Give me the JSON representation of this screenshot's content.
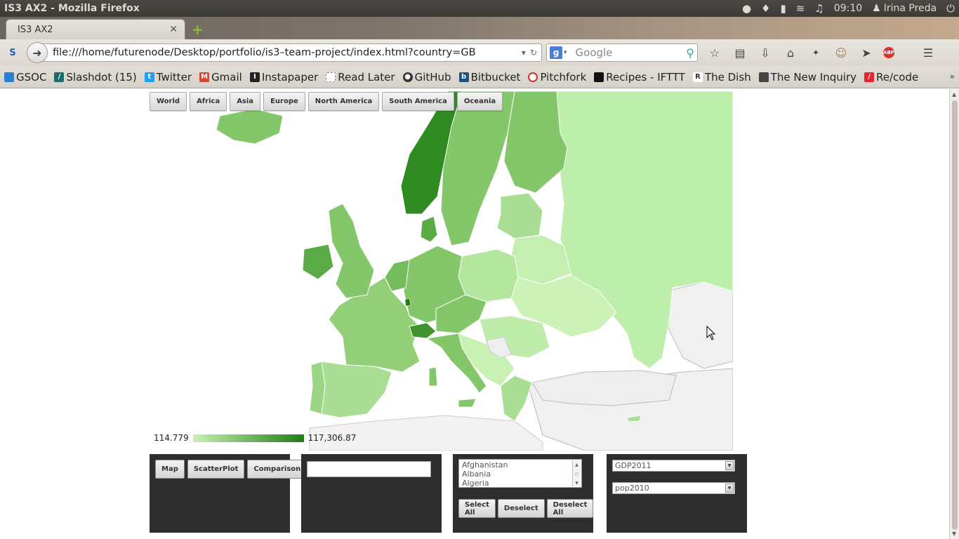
{
  "os": {
    "window_title": "IS3 AX2 - Mozilla Firefox",
    "time": "09:10",
    "user": "Irina Preda"
  },
  "tabs": [
    {
      "label": "IS3 AX2"
    }
  ],
  "navbar": {
    "url": "file:///home/futurenode/Desktop/portfolio/is3–team-project/index.html?country=GB",
    "search_placeholder": "Google"
  },
  "bookmarks": [
    {
      "label": "GSOC",
      "color": "#2a7fd4"
    },
    {
      "label": "Slashdot (15)",
      "color": "#1a6b6b"
    },
    {
      "label": "Twitter",
      "color": "#1da1f2"
    },
    {
      "label": "Gmail",
      "color": "#d44638"
    },
    {
      "label": "Instapaper",
      "color": "#222222"
    },
    {
      "label": "Read Later",
      "color": "#888888"
    },
    {
      "label": "GitHub",
      "color": "#333333"
    },
    {
      "label": "Bitbucket",
      "color": "#205081"
    },
    {
      "label": "Pitchfork",
      "color": "#d0342c"
    },
    {
      "label": "Recipes - IFTTT",
      "color": "#111111"
    },
    {
      "label": "The Dish",
      "color": "#555555"
    },
    {
      "label": "The New Inquiry",
      "color": "#444444"
    },
    {
      "label": "Re/code",
      "color": "#e8252a"
    }
  ],
  "regions": [
    "World",
    "Africa",
    "Asia",
    "Europe",
    "North America",
    "South America",
    "Oceania"
  ],
  "legend": {
    "min": "114.779",
    "max": "117,306.87",
    "color_low": "#c9f1b4",
    "color_high": "#1f7d14"
  },
  "view_buttons": [
    "Map",
    "ScatterPlot",
    "Comparison"
  ],
  "country_list": [
    "Afghanistan",
    "Albania",
    "Algeria"
  ],
  "selection_buttons": [
    "Select All",
    "Deselect",
    "Deselect All"
  ],
  "selects": {
    "x_variable": "GDP2011",
    "y_variable": "pop2010"
  }
}
